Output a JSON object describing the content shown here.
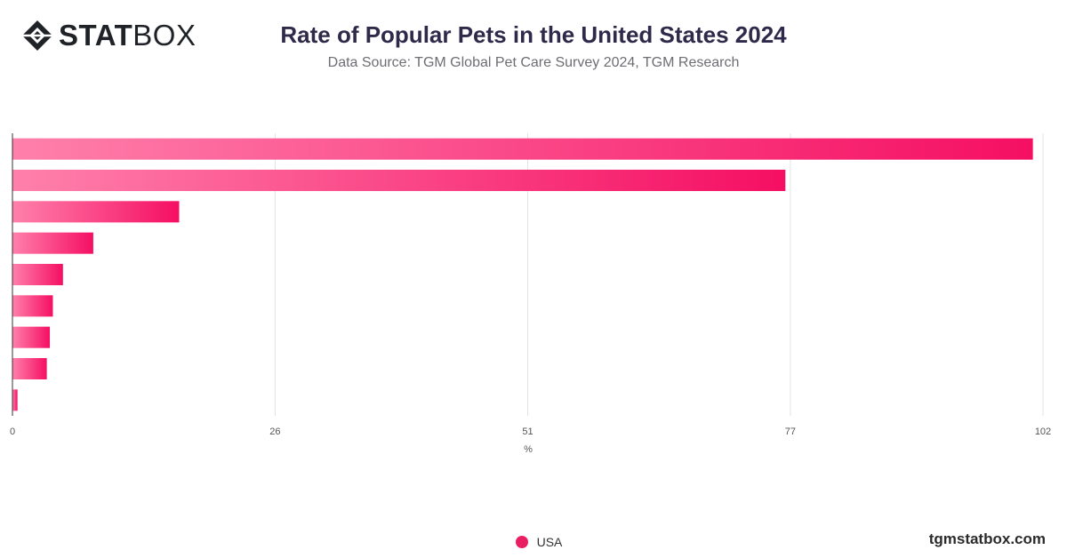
{
  "brand": {
    "logo_bold": "STAT",
    "logo_light": "BOX",
    "footer_url": "tgmstatbox.com"
  },
  "chart_data": {
    "type": "bar",
    "orientation": "horizontal",
    "title": "Rate of Popular Pets in the United States 2024",
    "subtitle": "Data Source: TGM Global Pet Care Survey 2024, TGM Research",
    "xlabel": "%",
    "xlim": [
      0,
      102
    ],
    "xticks": [
      0,
      26,
      51,
      77,
      102
    ],
    "grid": true,
    "legend_position": "bottom",
    "series": [
      {
        "name": "USA",
        "color": "#e91e63",
        "values": [
          101.0,
          76.5,
          16.5,
          8.0,
          5.0,
          4.0,
          3.7,
          3.4,
          0.5
        ]
      }
    ]
  }
}
